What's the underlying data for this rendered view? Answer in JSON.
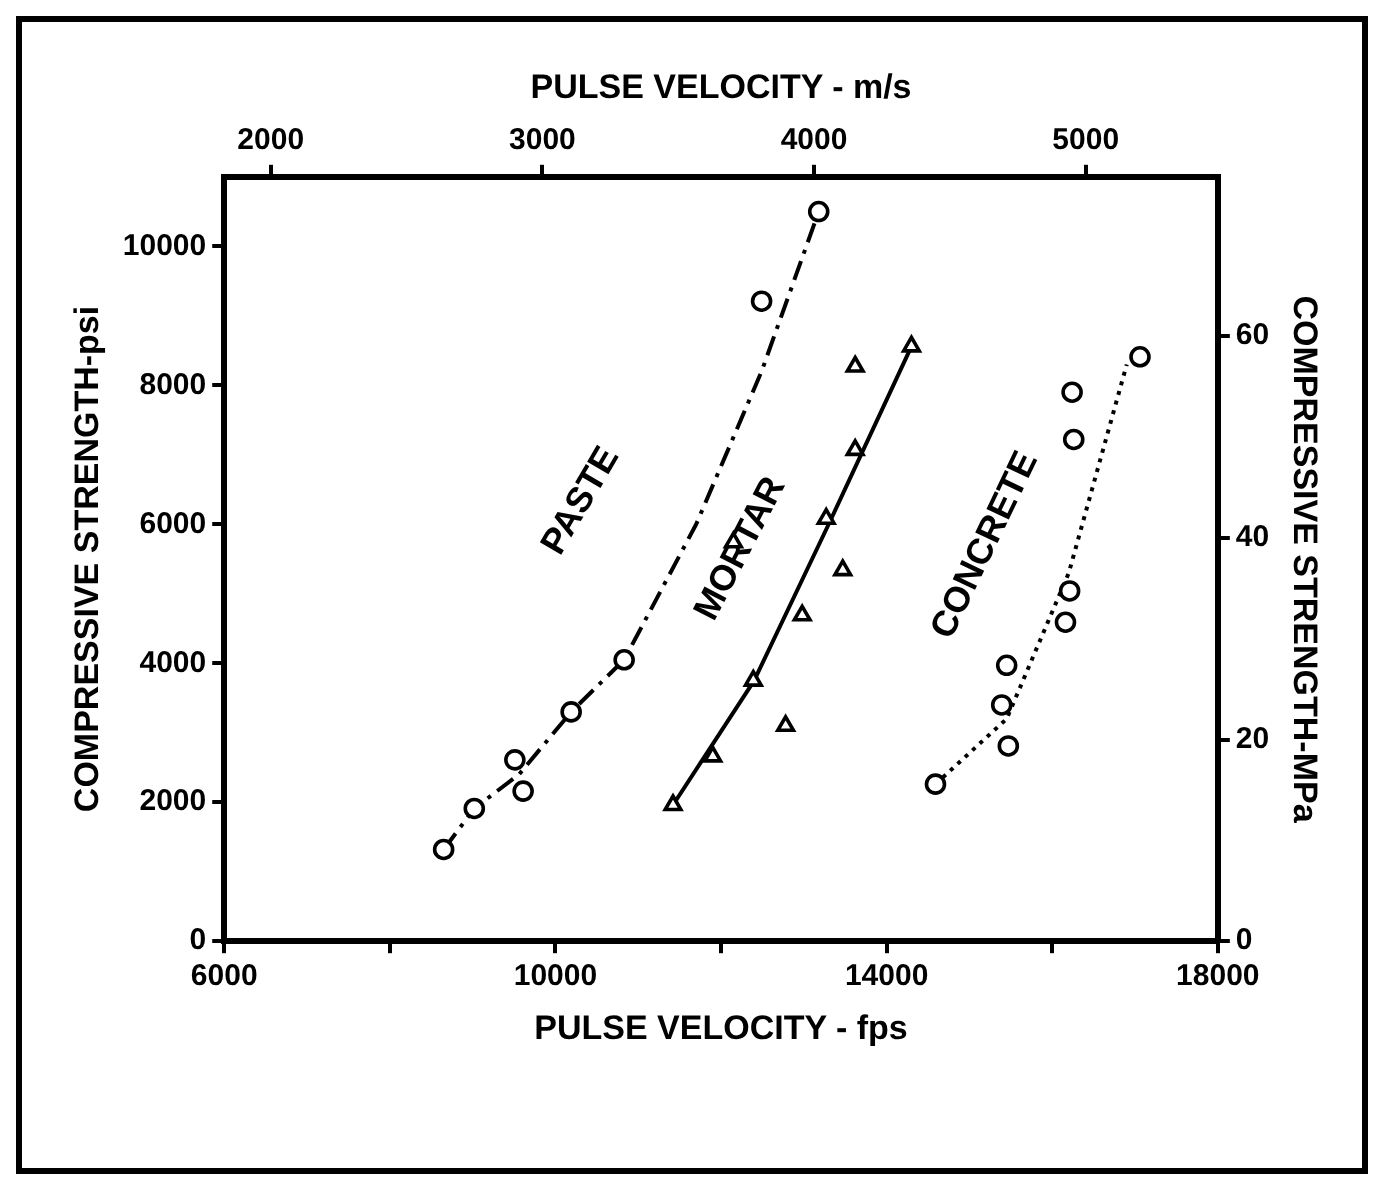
{
  "chart_data": {
    "type": "scatter",
    "xlabel": "PULSE VELOCITY - fps",
    "x2label": "PULSE VELOCITY - m/s",
    "ylabel": "COMPRESSIVE STRENGTH-psi",
    "y2label": "COMPRESSIVE STRENGTH-MPa",
    "xlim": [
      6000,
      18000
    ],
    "xticks": [
      6000,
      {
        "value": 8000,
        "label": null
      },
      10000,
      {
        "value": 12000,
        "label": null
      },
      14000,
      {
        "value": 16000,
        "label": null
      },
      18000
    ],
    "x2lim": [
      1828.8,
      5486.4
    ],
    "x2ticks": [
      2000,
      3000,
      4000,
      5000
    ],
    "ylim": [
      0,
      11000
    ],
    "yticks": [
      0,
      2000,
      4000,
      6000,
      8000,
      10000
    ],
    "y2lim": [
      0,
      75.8
    ],
    "y2ticks": [
      0,
      20,
      40,
      60
    ],
    "grid": false,
    "legend": false,
    "series": [
      {
        "name": "PASTE",
        "marker": "circle",
        "color": "#000000",
        "x": [
          8650,
          9020,
          9510,
          9610,
          10190,
          10830,
          12490,
          13180
        ],
        "values": [
          1320,
          1910,
          2610,
          2160,
          3300,
          4050,
          9210,
          10500
        ]
      },
      {
        "type": "line",
        "marker": "none",
        "line_style": "dashed",
        "color": "#000000",
        "x": [
          8650,
          9020,
          9560,
          10190,
          10830,
          11700,
          12490,
          13180
        ],
        "values": [
          1320,
          1910,
          2400,
          3300,
          4050,
          6000,
          8200,
          10500
        ]
      },
      {
        "name": "MORTAR",
        "marker": "triangle",
        "color": "#000000",
        "x": [
          11420,
          11900,
          12780,
          12390,
          12980,
          13470,
          12150,
          13270,
          13620,
          13620,
          14300
        ],
        "values": [
          1960,
          2660,
          3100,
          3750,
          4690,
          5340,
          5740,
          6080,
          7070,
          8270,
          8560
        ]
      },
      {
        "type": "line",
        "marker": "none",
        "line_style": "solid",
        "color": "#000000",
        "x": [
          11420,
          12400,
          13300,
          14300
        ],
        "values": [
          1960,
          3750,
          6000,
          8560
        ]
      },
      {
        "name": "CONCRETE",
        "marker": "circle",
        "color": "#000000",
        "x": [
          14590,
          15470,
          15390,
          15450,
          16160,
          16210,
          16260,
          16240,
          17060
        ],
        "values": [
          2260,
          2810,
          3400,
          3970,
          4590,
          5040,
          7220,
          7900,
          8410
        ]
      },
      {
        "type": "line",
        "marker": "none",
        "line_style": "dotted",
        "color": "#000000",
        "x": [
          14590,
          15450,
          16200,
          16900
        ],
        "values": [
          2260,
          3200,
          5300,
          8300
        ]
      }
    ]
  }
}
